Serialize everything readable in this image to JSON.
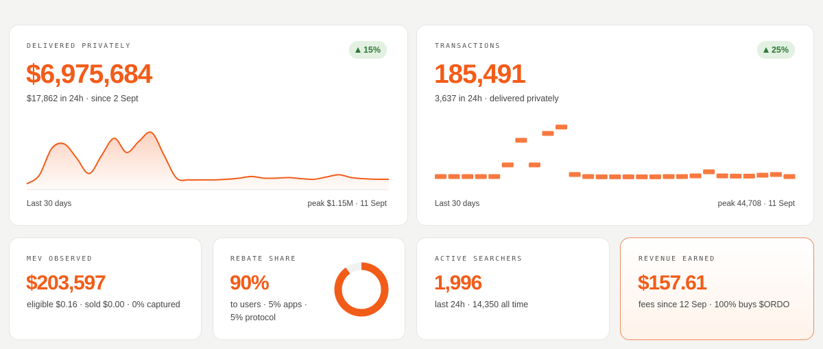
{
  "colors": {
    "accent": "#f25c19",
    "accent_light": "#f77940",
    "badge_bg": "#e3f1e3",
    "badge_text": "#2e7a34"
  },
  "cards": {
    "delivered": {
      "kicker": "DELIVERED PRIVATELY",
      "value": "$6,975,684",
      "sub": "$17,862 in 24h · since 2 Sept",
      "badge": "15%",
      "badge_icon": "triangle-up-icon",
      "foot_left": "Last 30 days",
      "foot_right": "peak $1.15M · 11 Sept"
    },
    "transactions": {
      "kicker": "TRANSACTIONS",
      "value": "185,491",
      "sub": "3,637 in 24h · delivered privately",
      "badge": "25%",
      "badge_icon": "triangle-up-icon",
      "foot_left": "Last 30 days",
      "foot_right": "peak 44,708 · 11 Sept"
    },
    "mev": {
      "kicker": "MEV OBSERVED",
      "value": "$203,597",
      "sub": "eligible $0.16 · sold $0.00 · 0% captured"
    },
    "rebate": {
      "kicker": "REBATE SHARE",
      "value": "90%",
      "sub_line1": "to users · 5% apps ·",
      "sub_line2": "5% protocol",
      "donut_fraction": 0.9
    },
    "searchers": {
      "kicker": "ACTIVE SEARCHERS",
      "value": "1,996",
      "sub": "last 24h · 14,350 all time"
    },
    "revenue": {
      "kicker": "REVENUE EARNED",
      "value": "$157.61",
      "sub": "fees since 12 Sep · 100% buys $ORDO"
    }
  },
  "chart_data": [
    {
      "type": "area",
      "series": [
        {
          "values": [
            0.1,
            0.25,
            0.72,
            0.8,
            0.55,
            0.28,
            0.6,
            0.9,
            0.65,
            0.85,
            1.0,
            0.6,
            0.2,
            0.17,
            0.17,
            0.17,
            0.18,
            0.2,
            0.23,
            0.2,
            0.2,
            0.21,
            0.19,
            0.18,
            0.22,
            0.26,
            0.21,
            0.19,
            0.18,
            0.18
          ]
        }
      ],
      "ylim": [
        0,
        1.2
      ]
    },
    {
      "type": "bar",
      "series": [
        {
          "values": [
            8500,
            8500,
            8500,
            8500,
            8500,
            17000,
            35000,
            17000,
            40000,
            44708,
            10000,
            8500,
            8300,
            8300,
            8300,
            8300,
            8300,
            8500,
            8500,
            9000,
            12000,
            9000,
            8800,
            8800,
            9500,
            10000,
            8500
          ]
        }
      ],
      "ylim": [
        0,
        50000
      ]
    }
  ]
}
